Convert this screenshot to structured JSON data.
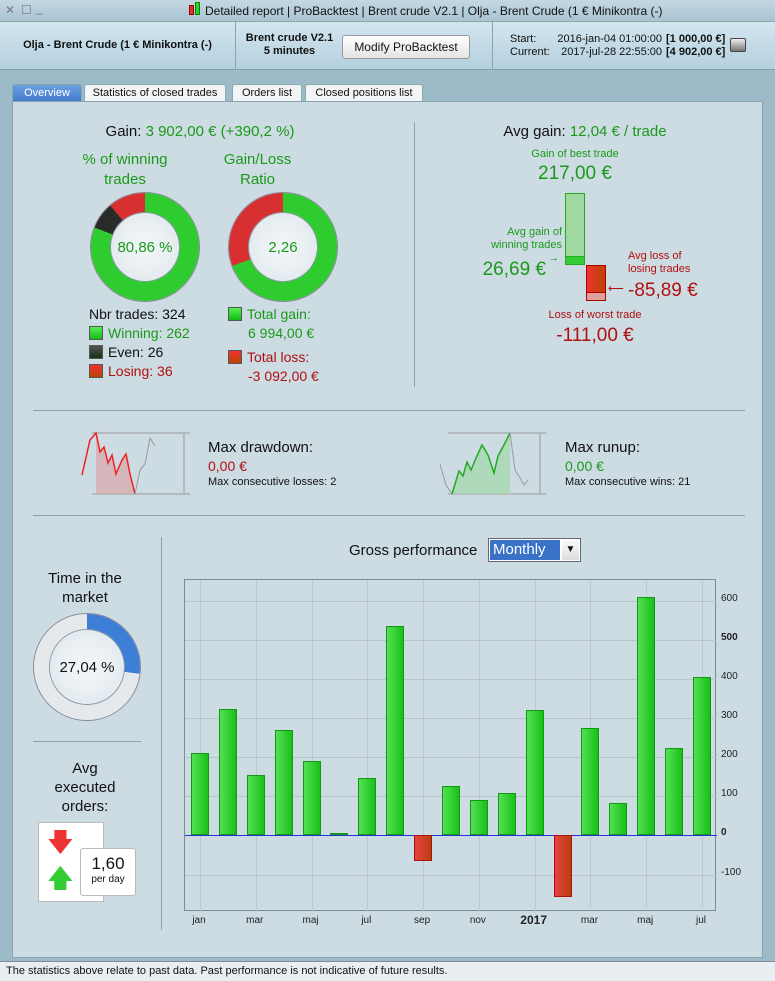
{
  "window": {
    "title": "Detailed report | ProBacktest | Brent crude V2.1 | Olja - Brent Crude (1 € Minikontra (-)"
  },
  "header": {
    "instrument": "Olja - Brent Crude (1 € Minikontra (-)",
    "strategy": "Brent crude V2.1",
    "timeframe": "5 minutes",
    "modify_button": "Modify ProBacktest",
    "start_label": "Start:",
    "start_date": "2016-jan-04 01:00:00",
    "start_value": "[1 000,00 €]",
    "current_label": "Current:",
    "current_date": "2017-jul-28 22:55:00",
    "current_value": "[4 902,00 €]"
  },
  "tabs": [
    {
      "label": "Overview",
      "active": true
    },
    {
      "label": "Statistics of closed trades"
    },
    {
      "label": "Orders list"
    },
    {
      "label": "Closed positions list"
    }
  ],
  "gain": {
    "label": "Gain:",
    "value": "3 902,00 € (+390,2 %)"
  },
  "winning": {
    "title1": "% of winning",
    "title2": "trades",
    "value": "80,86 %",
    "nbr_trades": "Nbr trades: 324",
    "winning": "Winning: 262",
    "even": "Even: 26",
    "losing": "Losing: 36",
    "win_frac": 0.8086,
    "even_frac": 0.0802
  },
  "ratio": {
    "title1": "Gain/Loss",
    "title2": "Ratio",
    "value": "2,26",
    "total_gain_label": "Total gain:",
    "total_gain": "6 994,00 €",
    "total_loss_label": "Total loss:",
    "total_loss": "-3 092,00 €",
    "gain_frac": 0.693
  },
  "avg": {
    "label": "Avg gain:",
    "value": "12,04 € / trade",
    "best_label": "Gain of best trade",
    "best": "217,00 €",
    "avg_win_label1": "Avg gain of",
    "avg_win_label2": "winning trades",
    "avg_win": "26,69 €",
    "avg_loss_label1": "Avg loss of",
    "avg_loss_label2": "losing trades",
    "avg_loss": "-85,89 €",
    "worst_label": "Loss of worst trade",
    "worst": "-111,00 €"
  },
  "drawdown": {
    "label": "Max drawdown:",
    "value": "0,00 €",
    "sub": "Max consecutive losses: 2"
  },
  "runup": {
    "label": "Max runup:",
    "value": "0,00 €",
    "sub": "Max consecutive wins: 21"
  },
  "market": {
    "title1": "Time in the",
    "title2": "market",
    "value": "27,04 %",
    "frac": 0.2704
  },
  "orders": {
    "title1": "Avg",
    "title2": "executed",
    "title3": "orders:",
    "value": "1,60",
    "unit": "per day"
  },
  "perf": {
    "title": "Gross performance",
    "period": "Monthly"
  },
  "chart_data": {
    "type": "bar",
    "title": "Gross performance",
    "xlabel": "",
    "ylabel": "",
    "categories": [
      "jan",
      "feb",
      "mar",
      "apr",
      "maj",
      "jun",
      "jul",
      "aug",
      "sep",
      "okt",
      "nov",
      "dec",
      "jan 2017",
      "feb",
      "mar",
      "apr",
      "maj",
      "jun",
      "jul"
    ],
    "values": [
      212,
      325,
      154,
      269,
      190,
      7,
      147,
      536,
      -65,
      126,
      91,
      108,
      322,
      -157,
      276,
      83,
      611,
      223,
      406
    ],
    "x_tick_labels": [
      "jan",
      "mar",
      "maj",
      "jul",
      "sep",
      "nov",
      "2017",
      "mar",
      "maj",
      "jul"
    ],
    "y_ticks": [
      600,
      500,
      400,
      300,
      200,
      100,
      0,
      -100
    ],
    "ylim": [
      -196,
      654
    ],
    "grid": true,
    "colors": {
      "positive": "#22cc22",
      "negative": "#cc2222"
    }
  },
  "status": "The statistics above relate to past data. Past performance is not indicative of future results."
}
